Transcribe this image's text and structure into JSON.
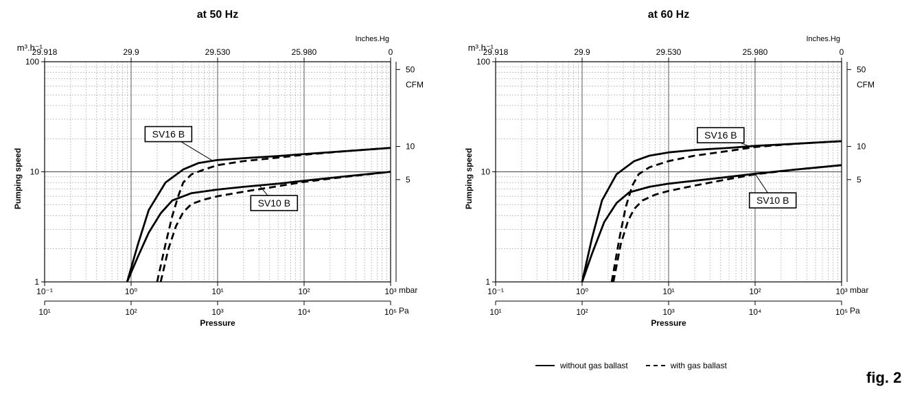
{
  "chart_data": [
    {
      "type": "line",
      "title": "at 50 Hz",
      "ylabel": "Pumping speed",
      "yunit_left": "m³.h⁻¹",
      "yscale": "log",
      "ylim": [
        1,
        100
      ],
      "yticks_left": [
        "1",
        "10",
        "100"
      ],
      "xlabel": "Pressure",
      "xscale": "log",
      "xlim": [
        0.1,
        1000
      ],
      "xunit_bottom": "mbar",
      "xticks_bottom": [
        "10⁻¹",
        "10⁰",
        "10¹",
        "10²",
        "10³"
      ],
      "xunit_pa": "Pa",
      "xticks_pa": [
        "10¹",
        "10²",
        "10³",
        "10⁴",
        "10⁵"
      ],
      "xunit_top": "Inches.Hg",
      "xticks_top": [
        "29.918",
        "29.9",
        "29.530",
        "25.980",
        "0"
      ],
      "yunit_right": "CFM",
      "yticks_right": [
        "5",
        "10",
        "50"
      ],
      "grid": true,
      "series": [
        {
          "name": "SV16 B",
          "style": "solid",
          "x": [
            0.9,
            1.2,
            1.6,
            2.5,
            4,
            6,
            10,
            20,
            50,
            100,
            300,
            1000
          ],
          "y": [
            1,
            2.2,
            4.5,
            8,
            10.5,
            12,
            12.8,
            13.3,
            13.9,
            14.5,
            15.4,
            16.5
          ]
        },
        {
          "name": "SV16 B",
          "style": "dashed",
          "x": [
            2,
            2.5,
            3,
            3.5,
            4,
            5,
            7,
            10,
            20,
            40,
            100,
            300,
            1000
          ],
          "y": [
            1,
            2.2,
            4,
            6,
            8,
            9.5,
            10.5,
            11.5,
            12.5,
            13.2,
            14.3,
            15.4,
            16.5
          ]
        },
        {
          "name": "SV10 B",
          "style": "solid",
          "x": [
            0.9,
            1.2,
            1.6,
            2.2,
            3,
            5,
            10,
            20,
            50,
            100,
            300,
            1000
          ],
          "y": [
            1,
            1.7,
            2.8,
            4.2,
            5.5,
            6.4,
            6.9,
            7.3,
            7.8,
            8.3,
            9.1,
            10
          ]
        },
        {
          "name": "SV10 B",
          "style": "dashed",
          "x": [
            2.2,
            2.7,
            3.3,
            4,
            5,
            7,
            10,
            20,
            50,
            100,
            300,
            1000
          ],
          "y": [
            1,
            2,
            3.2,
            4.3,
            5.1,
            5.6,
            6,
            6.6,
            7.4,
            8.1,
            9,
            10
          ]
        }
      ],
      "labels": [
        {
          "text": "SV16 B",
          "x": 2.7,
          "y": 22,
          "target_x": 8.5,
          "target_y": 12.8
        },
        {
          "text": "SV10 B",
          "x": 45,
          "y": 5.2,
          "target_x": 30,
          "target_y": 7.6
        }
      ]
    },
    {
      "type": "line",
      "title": "at 60 Hz",
      "ylabel": "Pumping speed",
      "yunit_left": "m³.h⁻¹",
      "yscale": "log",
      "ylim": [
        1,
        100
      ],
      "yticks_left": [
        "1",
        "10",
        "100"
      ],
      "xlabel": "Pressure",
      "xscale": "log",
      "xlim": [
        0.1,
        1000
      ],
      "xunit_bottom": "mbar",
      "xticks_bottom": [
        "10⁻¹",
        "10⁰",
        "10¹",
        "10²",
        "10³"
      ],
      "xunit_pa": "Pa",
      "xticks_pa": [
        "10¹",
        "10²",
        "10³",
        "10⁴",
        "10⁵"
      ],
      "xunit_top": "Inches.Hg",
      "xticks_top": [
        "29.918",
        "29.9",
        "29.530",
        "25.980",
        "0"
      ],
      "yunit_right": "CFM",
      "yticks_right": [
        "5",
        "10",
        "50"
      ],
      "grid": true,
      "series": [
        {
          "name": "SV16 B",
          "style": "solid",
          "x": [
            1,
            1.3,
            1.7,
            2.5,
            4,
            6,
            10,
            20,
            50,
            100,
            300,
            1000
          ],
          "y": [
            1,
            2.5,
            5.5,
            9.5,
            12.5,
            14,
            15,
            15.8,
            16.5,
            17.2,
            18,
            19
          ]
        },
        {
          "name": "SV16 B",
          "style": "dashed",
          "x": [
            2.2,
            2.7,
            3.2,
            3.8,
            4.5,
            6,
            10,
            20,
            50,
            100,
            300,
            1000
          ],
          "y": [
            1,
            2.5,
            4.8,
            7.5,
            9.5,
            11,
            12.5,
            14,
            15.5,
            16.8,
            18,
            19
          ]
        },
        {
          "name": "SV10 B",
          "style": "solid",
          "x": [
            1,
            1.3,
            1.8,
            2.5,
            3.5,
            6,
            10,
            20,
            50,
            100,
            300,
            1000
          ],
          "y": [
            1,
            1.8,
            3.5,
            5.2,
            6.5,
            7.3,
            7.8,
            8.3,
            9,
            9.6,
            10.5,
            11.5
          ]
        },
        {
          "name": "SV10 B",
          "style": "dashed",
          "x": [
            2.3,
            2.8,
            3.4,
            4,
            5,
            7,
            10,
            20,
            50,
            100,
            300,
            1000
          ],
          "y": [
            1,
            2.2,
            3.6,
            4.6,
            5.5,
            6.2,
            6.7,
            7.5,
            8.6,
            9.5,
            10.5,
            11.5
          ]
        }
      ],
      "labels": [
        {
          "text": "SV16 B",
          "x": 40,
          "y": 21.5,
          "target_x": 90,
          "target_y": 16.8
        },
        {
          "text": "SV10 B",
          "x": 160,
          "y": 5.5,
          "target_x": 100,
          "target_y": 9.6
        }
      ]
    }
  ],
  "legend": {
    "solid_label": "without gas ballast",
    "dashed_label": "with gas ballast"
  },
  "figure_label": "fig. 2"
}
